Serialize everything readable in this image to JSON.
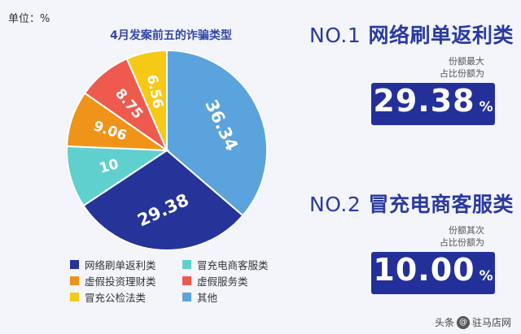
{
  "unit_label": "单位：%",
  "chart_data": {
    "type": "pie",
    "title": "4月发案前五的诈骗类型",
    "slices": [
      {
        "name": "网络刷单返利类",
        "value": 29.38,
        "label": "29.38",
        "color": "#263399"
      },
      {
        "name": "冒充电商客服类",
        "value": 10,
        "label": "10",
        "color": "#5fd0ce"
      },
      {
        "name": "虚假投资理财类",
        "value": 9.06,
        "label": "9.06",
        "color": "#ef9319"
      },
      {
        "name": "虚假服务类",
        "value": 8.75,
        "label": "8.75",
        "color": "#ee5a4e"
      },
      {
        "name": "冒充公检法类",
        "value": 6.56,
        "label": "6.56",
        "color": "#f6c916"
      },
      {
        "name": "其他",
        "value": 36.34,
        "label": "36.34",
        "color": "#5ba3dc"
      }
    ],
    "legend_placement": "bottom"
  },
  "ranks": [
    {
      "no": "NO.1",
      "name": "网络刷单返利类",
      "note": [
        "份额最大",
        "占比份额为"
      ],
      "value": "29.38",
      "unit": "%"
    },
    {
      "no": "NO.2",
      "name": "冒充电商客服类",
      "note": [
        "份额其次",
        "占比份额为"
      ],
      "value": "10.00",
      "unit": "%"
    }
  ],
  "watermark": {
    "prefix": "头条",
    "suffix": "驻马店网"
  }
}
